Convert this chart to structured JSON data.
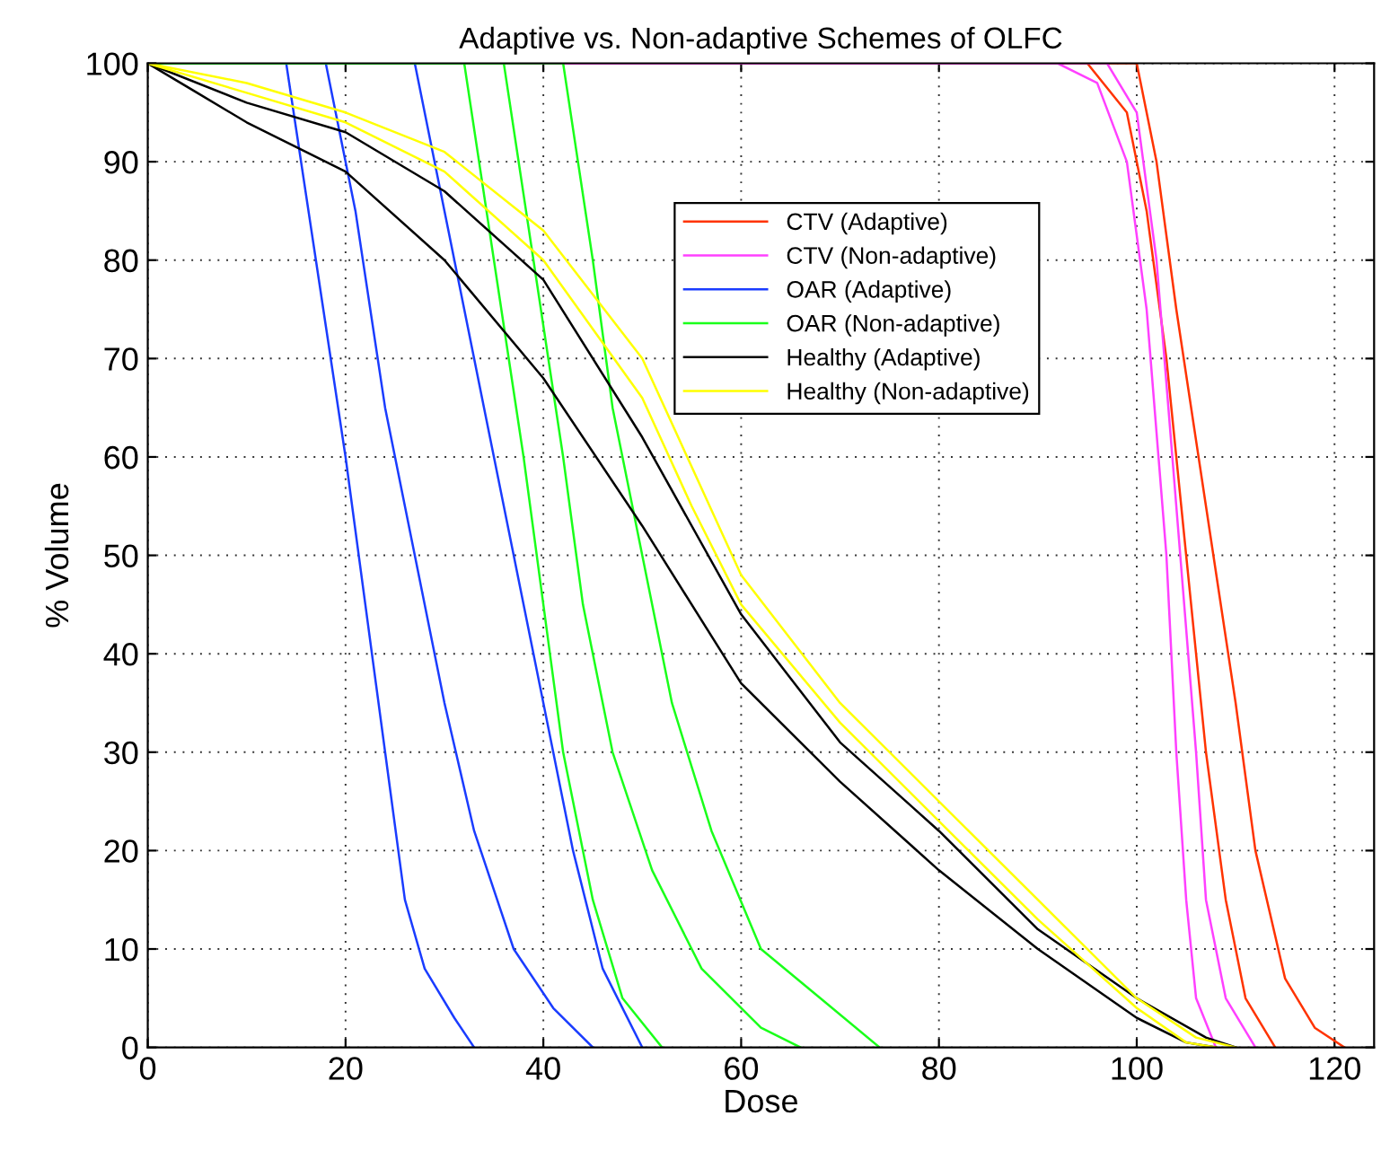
{
  "chart_data": {
    "type": "line",
    "title": "Adaptive vs. Non-adaptive Schemes of OLFC",
    "xlabel": "Dose",
    "ylabel": "% Volume",
    "xlim": [
      0,
      124
    ],
    "ylim": [
      0,
      100
    ],
    "xticks": [
      0,
      20,
      40,
      60,
      80,
      100,
      120
    ],
    "yticks": [
      0,
      10,
      20,
      30,
      40,
      50,
      60,
      70,
      80,
      90,
      100
    ],
    "grid": true,
    "legend": "top right",
    "series": [
      {
        "name": "CTV (Adaptive)",
        "color": "#ff3300",
        "x": [
          0,
          95,
          99,
          101,
          103,
          105,
          107,
          109,
          111,
          114
        ],
        "values": [
          100,
          100,
          95,
          85,
          70,
          50,
          30,
          15,
          5,
          0
        ]
      },
      {
        "color": "#ff3300",
        "x": [
          0,
          100,
          102,
          104,
          107,
          110,
          112,
          115,
          118,
          121
        ],
        "values": [
          100,
          100,
          90,
          75,
          55,
          35,
          20,
          7,
          2,
          0
        ]
      },
      {
        "name": "CTV (Non-adaptive)",
        "color": "#ff40ff",
        "x": [
          0,
          92,
          96,
          99,
          101,
          103,
          104,
          105,
          106,
          108
        ],
        "values": [
          100,
          100,
          98,
          90,
          75,
          50,
          30,
          15,
          5,
          0
        ]
      },
      {
        "color": "#ff40ff",
        "x": [
          0,
          97,
          100,
          102,
          104,
          106,
          107,
          109,
          112
        ],
        "values": [
          100,
          100,
          95,
          80,
          55,
          30,
          15,
          5,
          0
        ]
      },
      {
        "name": "OAR (Adaptive)",
        "color": "#1a3cff",
        "x": [
          0,
          14,
          17,
          20,
          22,
          24,
          26,
          28,
          31,
          33
        ],
        "values": [
          100,
          100,
          80,
          60,
          45,
          30,
          15,
          8,
          3,
          0
        ]
      },
      {
        "color": "#1a3cff",
        "x": [
          0,
          18,
          21,
          24,
          27,
          30,
          33,
          37,
          41,
          45
        ],
        "values": [
          100,
          100,
          85,
          65,
          50,
          35,
          22,
          10,
          4,
          0
        ]
      },
      {
        "color": "#1a3cff",
        "x": [
          0,
          27,
          30,
          34,
          37,
          40,
          43,
          46,
          50
        ],
        "values": [
          100,
          100,
          85,
          65,
          50,
          35,
          20,
          8,
          0
        ]
      },
      {
        "name": "OAR (Non-adaptive)",
        "color": "#1aff1a",
        "x": [
          0,
          32,
          35,
          38,
          40,
          42,
          45,
          48,
          52
        ],
        "values": [
          100,
          100,
          80,
          60,
          45,
          30,
          15,
          5,
          0
        ]
      },
      {
        "color": "#1aff1a",
        "x": [
          0,
          36,
          39,
          42,
          44,
          47,
          51,
          56,
          62,
          66
        ],
        "values": [
          100,
          100,
          80,
          60,
          45,
          30,
          18,
          8,
          2,
          0
        ]
      },
      {
        "color": "#1aff1a",
        "x": [
          0,
          42,
          45,
          47,
          50,
          53,
          57,
          62,
          68,
          74
        ],
        "values": [
          100,
          100,
          80,
          65,
          50,
          35,
          22,
          10,
          5,
          0
        ]
      },
      {
        "name": "Healthy (Adaptive)",
        "color": "#000000",
        "x": [
          0,
          5,
          10,
          20,
          30,
          40,
          50,
          60,
          70,
          80,
          90,
          100,
          105,
          108
        ],
        "values": [
          100,
          97,
          94,
          89,
          80,
          68,
          53,
          37,
          27,
          18,
          10,
          3,
          0.5,
          0
        ]
      },
      {
        "color": "#000000",
        "x": [
          0,
          10,
          20,
          30,
          40,
          50,
          60,
          70,
          80,
          90,
          100,
          107,
          110
        ],
        "values": [
          100,
          96,
          93,
          87,
          78,
          62,
          44,
          31,
          22,
          12,
          5,
          1,
          0
        ]
      },
      {
        "name": "Healthy (Non-adaptive)",
        "color": "#ffff00",
        "x": [
          0,
          10,
          20,
          30,
          40,
          50,
          55,
          60,
          70,
          80,
          90,
          100,
          105,
          108
        ],
        "values": [
          100,
          97,
          94,
          89,
          80,
          66,
          55,
          45,
          33,
          23,
          13,
          4,
          0.5,
          0
        ]
      },
      {
        "color": "#ffff00",
        "x": [
          0,
          10,
          20,
          30,
          40,
          50,
          60,
          70,
          80,
          90,
          100,
          106,
          110
        ],
        "values": [
          100,
          98,
          95,
          91,
          83,
          70,
          48,
          35,
          25,
          15,
          5,
          1,
          0
        ]
      }
    ]
  }
}
